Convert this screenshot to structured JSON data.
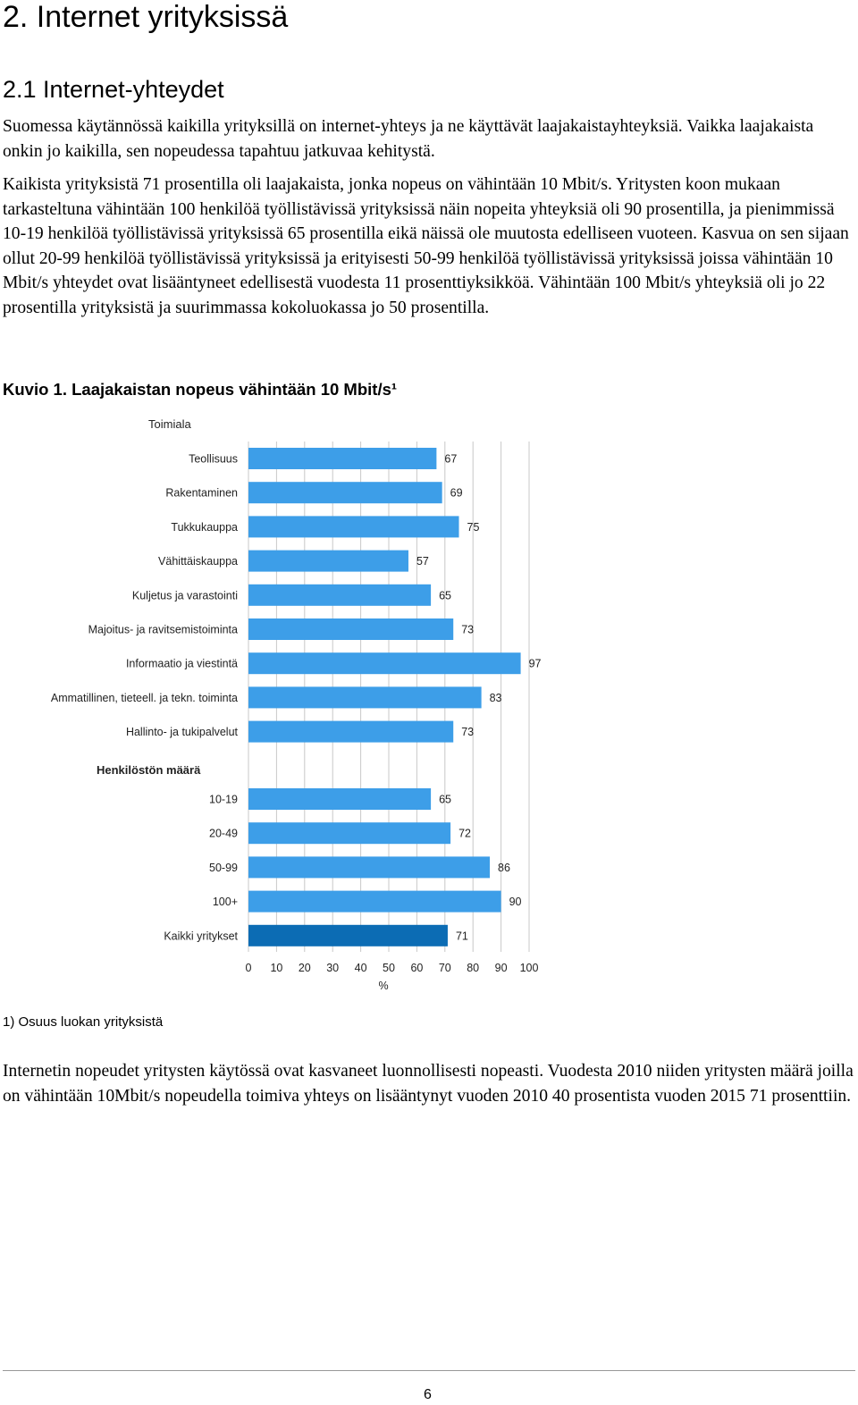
{
  "heading": "2. Internet yrityksissä",
  "subheading": "2.1 Internet-yhteydet",
  "paragraphs": {
    "p1": "Suomessa käytännössä kaikilla yrityksillä on internet-yhteys ja ne käyttävät laajakaistayhteyksiä. Vaikka laajakaista onkin jo kaikilla, sen nopeudessa tapahtuu jatkuvaa kehitystä.",
    "p2": "Kaikista yrityksistä 71 prosentilla oli laajakaista, jonka nopeus on vähintään 10 Mbit/s. Yritysten koon mukaan tarkasteltuna vähintään 100 henkilöä työllistävissä yrityksissä näin nopeita yhteyksiä oli 90 prosentilla, ja pienimmissä 10-19 henkilöä työllistävissä yrityksissä 65 prosentilla eikä näissä ole muutosta edelliseen vuoteen. Kasvua on sen sijaan ollut 20-99 henkilöä työllistävissä yrityksissä ja erityisesti 50-99 henkilöä työllistävissä yrityksissä joissa vähintään 10 Mbit/s yhteydet ovat lisääntyneet edellisestä vuodesta 11 prosenttiyksikköä. Vähintään 100 Mbit/s yhteyksiä oli jo 22 prosentilla yrityksistä ja suurimmassa kokoluokassa jo 50 prosentilla.",
    "p3": "Internetin nopeudet yritysten käytössä ovat kasvaneet luonnollisesti nopeasti. Vuodesta 2010 niiden yritysten määrä joilla on vähintään 10Mbit/s nopeudella toimiva yhteys on lisääntynyt vuoden 2010 40 prosentista vuoden 2015 71 prosenttiin."
  },
  "figure_title": "Kuvio 1. Laajakaistan nopeus vähintään 10 Mbit/s¹",
  "footnote": "1) Osuus luokan yrityksistä",
  "page_number": "6",
  "colors": {
    "bar": "#3d9ee8",
    "bar_total": "#0c6cb4",
    "grid": "#c8c8c8"
  },
  "chart_data": {
    "type": "bar",
    "orientation": "horizontal",
    "xlabel": "%",
    "xlim": [
      0,
      100
    ],
    "xticks": [
      "0",
      "10",
      "20",
      "30",
      "40",
      "50",
      "60",
      "70",
      "80",
      "90",
      "100"
    ],
    "grid": true,
    "groups": [
      {
        "name": "Toimiala",
        "categories": [
          "Teollisuus",
          "Rakentaminen",
          "Tukkukauppa",
          "Vähittäiskauppa",
          "Kuljetus ja varastointi",
          "Majoitus- ja ravitsemistoiminta",
          "Informaatio ja viestintä",
          "Ammatillinen, tieteell. ja tekn. toiminta",
          "Hallinto- ja tukipalvelut"
        ],
        "values": [
          67,
          69,
          75,
          57,
          65,
          73,
          97,
          83,
          73
        ]
      },
      {
        "name": "Henkilöstön määrä",
        "categories": [
          "10-19",
          "20-49",
          "50-99",
          "100+",
          "Kaikki yritykset"
        ],
        "values": [
          65,
          72,
          86,
          90,
          71
        ]
      }
    ]
  }
}
